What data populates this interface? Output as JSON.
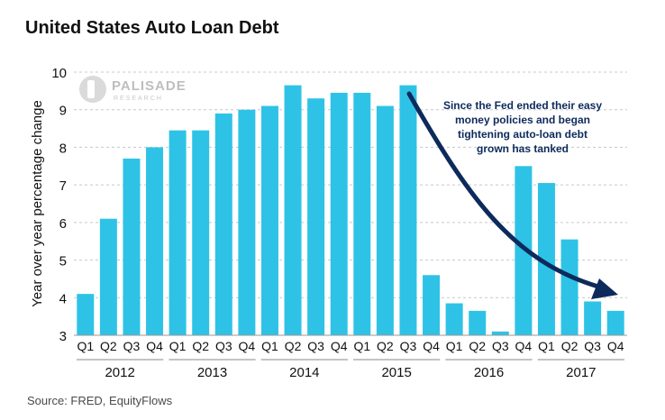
{
  "chart_data": {
    "type": "bar",
    "title": "United States Auto Loan Debt",
    "ylabel": "Year over year percentage change",
    "xlabel": "",
    "ylim": [
      3,
      10
    ],
    "yticks": [
      3,
      4,
      5,
      6,
      7,
      8,
      9,
      10
    ],
    "grid": true,
    "color": "#2ec3e6",
    "categories": [
      "Q1",
      "Q2",
      "Q3",
      "Q4",
      "Q1",
      "Q2",
      "Q3",
      "Q4",
      "Q1",
      "Q2",
      "Q3",
      "Q4",
      "Q1",
      "Q2",
      "Q3",
      "Q4",
      "Q1",
      "Q2",
      "Q3",
      "Q4",
      "Q1",
      "Q2",
      "Q3",
      "Q4"
    ],
    "years": [
      "2012",
      "2013",
      "2014",
      "2015",
      "2016",
      "2017"
    ],
    "values": [
      4.1,
      6.1,
      7.7,
      8.0,
      8.45,
      8.45,
      8.9,
      9.0,
      9.1,
      9.65,
      9.3,
      9.45,
      9.45,
      9.1,
      9.65,
      4.6,
      3.85,
      3.65,
      3.1,
      7.5,
      7.05,
      5.55,
      3.9,
      3.65
    ],
    "annotation": {
      "lines": [
        "Since the Fed ended their easy",
        "money policies and began",
        "tightening auto-loan debt",
        "grown has tanked"
      ],
      "color": "#0d2a5c"
    }
  },
  "logo": {
    "name": "PALISADE",
    "sub": "RESEARCH"
  },
  "source": "Source:  FRED, EquityFlows"
}
